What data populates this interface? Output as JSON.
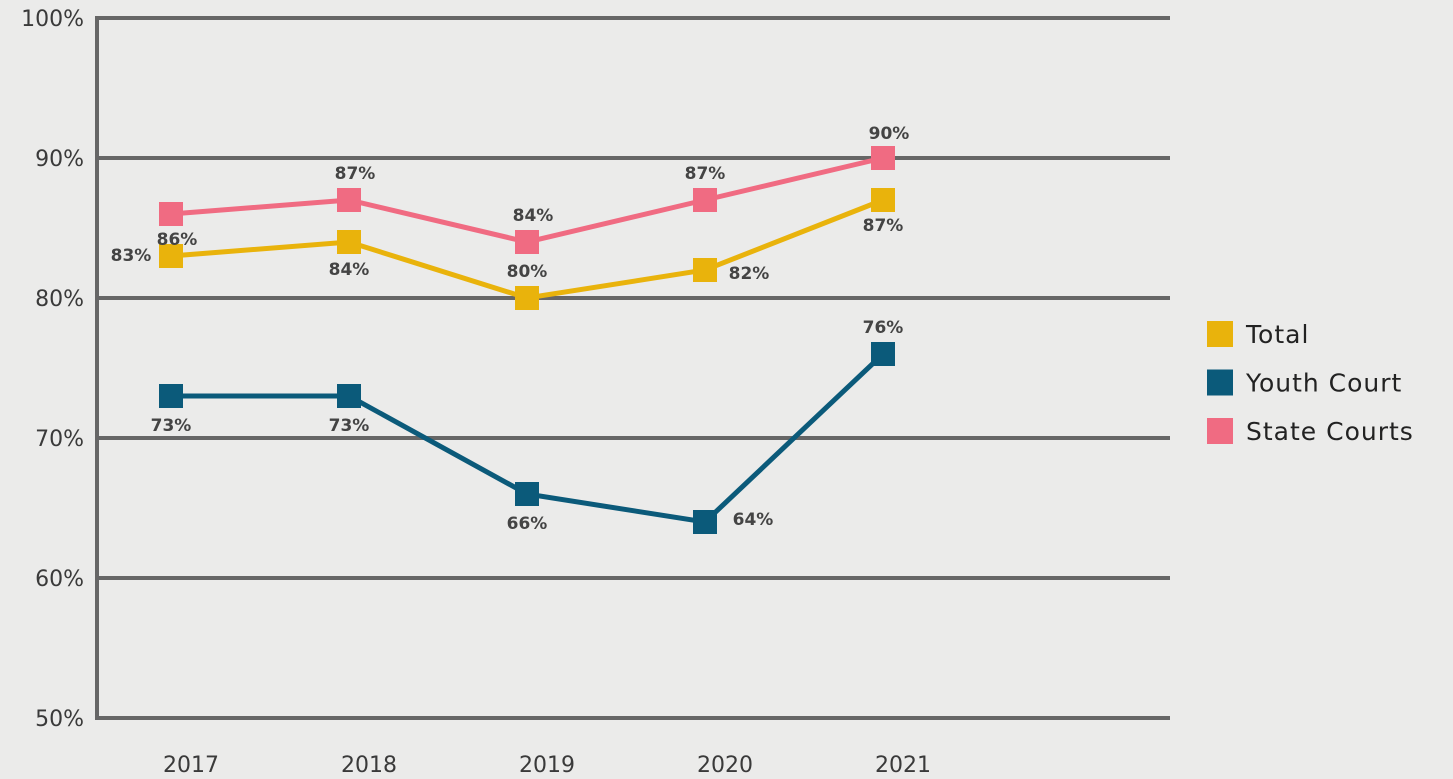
{
  "chart_data": {
    "type": "line",
    "categories": [
      "2017",
      "2018",
      "2019",
      "2020",
      "2021"
    ],
    "series": [
      {
        "name": "Total",
        "color": "#e9b30c",
        "values": [
          83,
          84,
          80,
          82,
          87
        ],
        "value_labels": [
          "83%",
          "84%",
          "80%",
          "82%",
          "87%"
        ]
      },
      {
        "name": "Youth Court",
        "color": "#0b5a7a",
        "values": [
          73,
          73,
          66,
          64,
          76
        ],
        "value_labels": [
          "73%",
          "73%",
          "66%",
          "64%",
          "76%"
        ]
      },
      {
        "name": "State Courts",
        "color": "#f06b82",
        "values": [
          86,
          87,
          84,
          87,
          90
        ],
        "value_labels": [
          "86%",
          "87%",
          "84%",
          "87%",
          "90%"
        ]
      }
    ],
    "ylim": [
      50,
      100
    ],
    "yticks": [
      {
        "value": 50,
        "label": "50%"
      },
      {
        "value": 60,
        "label": "60%"
      },
      {
        "value": 70,
        "label": "70%"
      },
      {
        "value": 80,
        "label": "80%"
      },
      {
        "value": 90,
        "label": "90%"
      },
      {
        "value": 100,
        "label": "100%"
      }
    ],
    "grid": true,
    "legend": "right"
  }
}
